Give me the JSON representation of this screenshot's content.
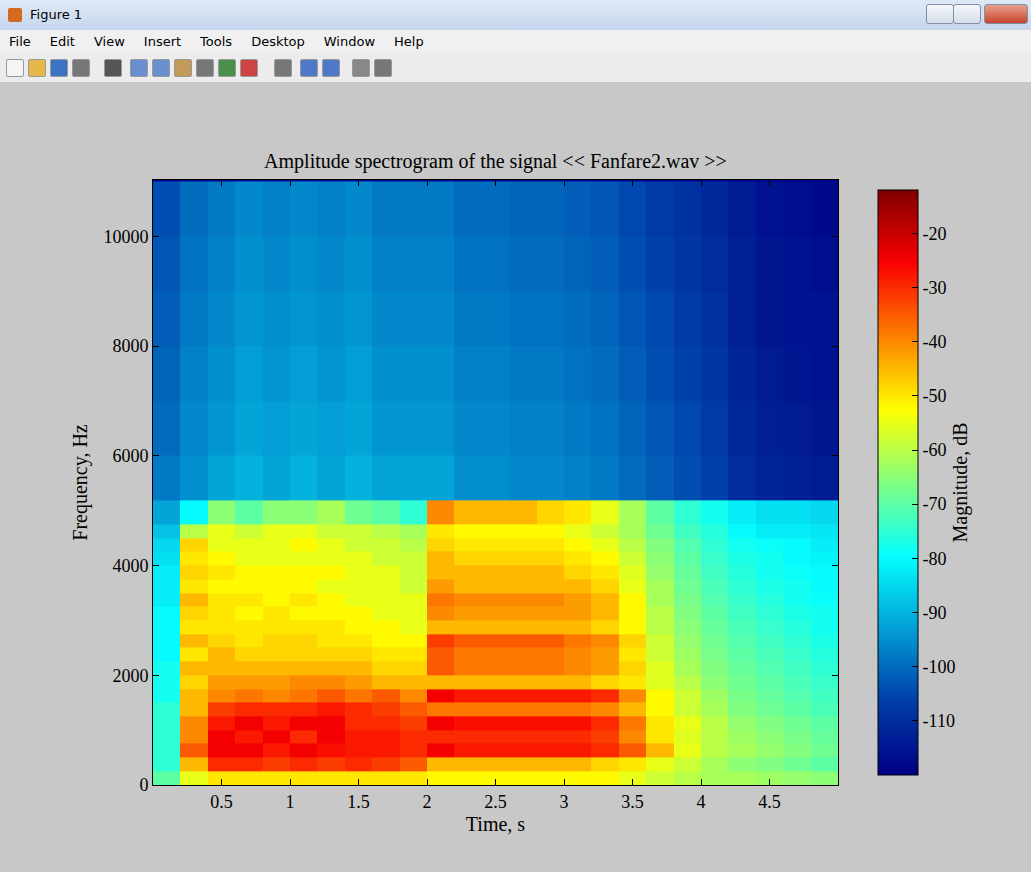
{
  "window": {
    "title": "Figure 1",
    "menu": [
      "File",
      "Edit",
      "View",
      "Insert",
      "Tools",
      "Desktop",
      "Window",
      "Help"
    ]
  },
  "chart_data": {
    "type": "heatmap",
    "title": "Amplitude spectrogram of the signal << Fanfare2.wav >>",
    "x_label": "Time, s",
    "y_label": "Frequency, Hz",
    "x": [
      0.1,
      0.3,
      0.5,
      0.7,
      0.9,
      1.1,
      1.3,
      1.5,
      1.7,
      1.9,
      2.1,
      2.3,
      2.5,
      2.7,
      2.9,
      3.1,
      3.3,
      3.5,
      3.7,
      3.9,
      4.1,
      4.3,
      4.5,
      4.7,
      4.9
    ],
    "y": [
      125,
      375,
      625,
      875,
      1125,
      1375,
      1625,
      1875,
      2125,
      2375,
      2625,
      2875,
      3125,
      3375,
      3625,
      3875,
      4125,
      4375,
      4625,
      4875,
      5500,
      6500,
      7500,
      8500,
      9500,
      10500
    ],
    "values": [
      [
        -70,
        -55,
        -50,
        -50,
        -50,
        -50,
        -50,
        -50,
        -50,
        -50,
        -52,
        -52,
        -52,
        -52,
        -52,
        -52,
        -52,
        -55,
        -58,
        -60,
        -62,
        -62,
        -63,
        -64,
        -65
      ],
      [
        -75,
        -45,
        -30,
        -30,
        -32,
        -30,
        -32,
        -30,
        -32,
        -35,
        -45,
        -45,
        -45,
        -45,
        -45,
        -45,
        -48,
        -50,
        -55,
        -58,
        -62,
        -65,
        -66,
        -68,
        -70
      ],
      [
        -75,
        -35,
        -25,
        -25,
        -28,
        -25,
        -27,
        -28,
        -28,
        -30,
        -25,
        -28,
        -28,
        -28,
        -28,
        -28,
        -30,
        -35,
        -45,
        -55,
        -60,
        -62,
        -64,
        -66,
        -68
      ],
      [
        -75,
        -40,
        -25,
        -28,
        -25,
        -30,
        -25,
        -28,
        -28,
        -30,
        -30,
        -30,
        -30,
        -30,
        -30,
        -30,
        -32,
        -40,
        -50,
        -56,
        -60,
        -63,
        -65,
        -67,
        -69
      ],
      [
        -75,
        -40,
        -28,
        -25,
        -28,
        -25,
        -25,
        -30,
        -30,
        -32,
        -25,
        -27,
        -27,
        -27,
        -27,
        -27,
        -30,
        -38,
        -50,
        -55,
        -60,
        -64,
        -66,
        -68,
        -70
      ],
      [
        -75,
        -45,
        -32,
        -30,
        -30,
        -30,
        -28,
        -30,
        -32,
        -35,
        -38,
        -38,
        -38,
        -38,
        -38,
        -38,
        -40,
        -45,
        -52,
        -58,
        -62,
        -66,
        -68,
        -70,
        -72
      ],
      [
        -78,
        -45,
        -40,
        -38,
        -40,
        -38,
        -35,
        -38,
        -35,
        -40,
        -25,
        -28,
        -28,
        -28,
        -28,
        -28,
        -30,
        -40,
        -52,
        -58,
        -63,
        -67,
        -69,
        -71,
        -73
      ],
      [
        -78,
        -48,
        -42,
        -42,
        -42,
        -40,
        -40,
        -42,
        -45,
        -45,
        -45,
        -45,
        -45,
        -45,
        -45,
        -45,
        -48,
        -50,
        -56,
        -60,
        -65,
        -68,
        -70,
        -72,
        -74
      ],
      [
        -78,
        -45,
        -45,
        -45,
        -45,
        -45,
        -45,
        -45,
        -48,
        -48,
        -35,
        -38,
        -38,
        -38,
        -38,
        -40,
        -42,
        -48,
        -56,
        -62,
        -66,
        -69,
        -71,
        -73,
        -75
      ],
      [
        -80,
        -50,
        -45,
        -48,
        -48,
        -48,
        -48,
        -48,
        -50,
        -50,
        -35,
        -38,
        -38,
        -38,
        -38,
        -40,
        -42,
        -50,
        -58,
        -63,
        -67,
        -70,
        -72,
        -74,
        -76
      ],
      [
        -80,
        -45,
        -48,
        -50,
        -48,
        -48,
        -50,
        -50,
        -52,
        -52,
        -32,
        -35,
        -35,
        -35,
        -35,
        -38,
        -40,
        -48,
        -58,
        -64,
        -68,
        -71,
        -73,
        -75,
        -77
      ],
      [
        -80,
        -50,
        -50,
        -50,
        -50,
        -50,
        -50,
        -52,
        -52,
        -55,
        -45,
        -45,
        -45,
        -45,
        -45,
        -45,
        -48,
        -52,
        -60,
        -65,
        -69,
        -72,
        -74,
        -76,
        -78
      ],
      [
        -80,
        -48,
        -50,
        -52,
        -50,
        -52,
        -52,
        -52,
        -55,
        -55,
        -40,
        -42,
        -42,
        -42,
        -42,
        -42,
        -45,
        -52,
        -60,
        -66,
        -70,
        -73,
        -75,
        -77,
        -78
      ],
      [
        -82,
        -45,
        -50,
        -50,
        -52,
        -50,
        -52,
        -55,
        -55,
        -55,
        -38,
        -40,
        -40,
        -40,
        -40,
        -42,
        -45,
        -52,
        -62,
        -67,
        -71,
        -74,
        -76,
        -78,
        -79
      ],
      [
        -82,
        -50,
        -52,
        -52,
        -52,
        -52,
        -55,
        -55,
        -55,
        -58,
        -42,
        -45,
        -45,
        -45,
        -45,
        -45,
        -48,
        -55,
        -62,
        -68,
        -72,
        -75,
        -77,
        -78,
        -80
      ],
      [
        -82,
        -48,
        -50,
        -52,
        -52,
        -52,
        -52,
        -55,
        -55,
        -58,
        -45,
        -45,
        -45,
        -45,
        -45,
        -48,
        -50,
        -56,
        -64,
        -69,
        -73,
        -76,
        -78,
        -79,
        -80
      ],
      [
        -84,
        -50,
        -52,
        -55,
        -55,
        -55,
        -55,
        -55,
        -58,
        -58,
        -45,
        -48,
        -48,
        -48,
        -48,
        -50,
        -52,
        -58,
        -65,
        -70,
        -74,
        -77,
        -78,
        -80,
        -81
      ],
      [
        -85,
        -48,
        -55,
        -55,
        -55,
        -52,
        -55,
        -58,
        -58,
        -60,
        -48,
        -50,
        -50,
        -50,
        -50,
        -52,
        -55,
        -60,
        -66,
        -71,
        -75,
        -78,
        -79,
        -80,
        -82
      ],
      [
        -88,
        -60,
        -55,
        -58,
        -55,
        -55,
        -58,
        -58,
        -60,
        -62,
        -50,
        -52,
        -52,
        -52,
        -52,
        -55,
        -58,
        -62,
        -68,
        -73,
        -76,
        -80,
        -82,
        -82,
        -83
      ],
      [
        -92,
        -80,
        -65,
        -70,
        -65,
        -65,
        -62,
        -68,
        -70,
        -75,
        -40,
        -45,
        -45,
        -45,
        -48,
        -50,
        -55,
        -62,
        -70,
        -75,
        -78,
        -82,
        -84,
        -84,
        -85
      ],
      [
        -98,
        -95,
        -92,
        -90,
        -92,
        -90,
        -92,
        -90,
        -92,
        -92,
        -92,
        -95,
        -95,
        -96,
        -96,
        -97,
        -98,
        -100,
        -102,
        -104,
        -106,
        -110,
        -112,
        -113,
        -114
      ],
      [
        -100,
        -96,
        -94,
        -92,
        -93,
        -92,
        -93,
        -92,
        -94,
        -94,
        -94,
        -96,
        -96,
        -97,
        -97,
        -98,
        -99,
        -101,
        -103,
        -105,
        -107,
        -111,
        -113,
        -114,
        -115
      ],
      [
        -101,
        -97,
        -95,
        -93,
        -94,
        -93,
        -94,
        -93,
        -95,
        -95,
        -95,
        -97,
        -97,
        -98,
        -98,
        -99,
        -100,
        -102,
        -104,
        -106,
        -108,
        -112,
        -114,
        -115,
        -116
      ],
      [
        -102,
        -98,
        -96,
        -94,
        -95,
        -94,
        -95,
        -94,
        -96,
        -96,
        -96,
        -98,
        -98,
        -99,
        -99,
        -100,
        -101,
        -103,
        -105,
        -107,
        -109,
        -113,
        -115,
        -116,
        -116
      ],
      [
        -103,
        -99,
        -97,
        -95,
        -96,
        -95,
        -96,
        -95,
        -97,
        -97,
        -97,
        -99,
        -99,
        -100,
        -100,
        -101,
        -102,
        -104,
        -106,
        -108,
        -110,
        -113,
        -115,
        -116,
        -117
      ],
      [
        -104,
        -100,
        -98,
        -96,
        -97,
        -96,
        -97,
        -96,
        -98,
        -98,
        -98,
        -100,
        -100,
        -101,
        -101,
        -102,
        -103,
        -105,
        -107,
        -109,
        -111,
        -114,
        -116,
        -117,
        -118
      ]
    ],
    "xlim": [
      0,
      5
    ],
    "xticks": [
      0.5,
      1,
      1.5,
      2,
      2.5,
      3,
      3.5,
      4,
      4.5
    ],
    "ylim": [
      0,
      11025
    ],
    "yticks": [
      0,
      2000,
      4000,
      6000,
      8000,
      10000
    ],
    "colorbar": {
      "title": "Magnitude, dB",
      "range": [
        -120,
        -12
      ],
      "ticks": [
        -110,
        -100,
        -90,
        -80,
        -70,
        -60,
        -50,
        -40,
        -30,
        -20
      ]
    }
  }
}
